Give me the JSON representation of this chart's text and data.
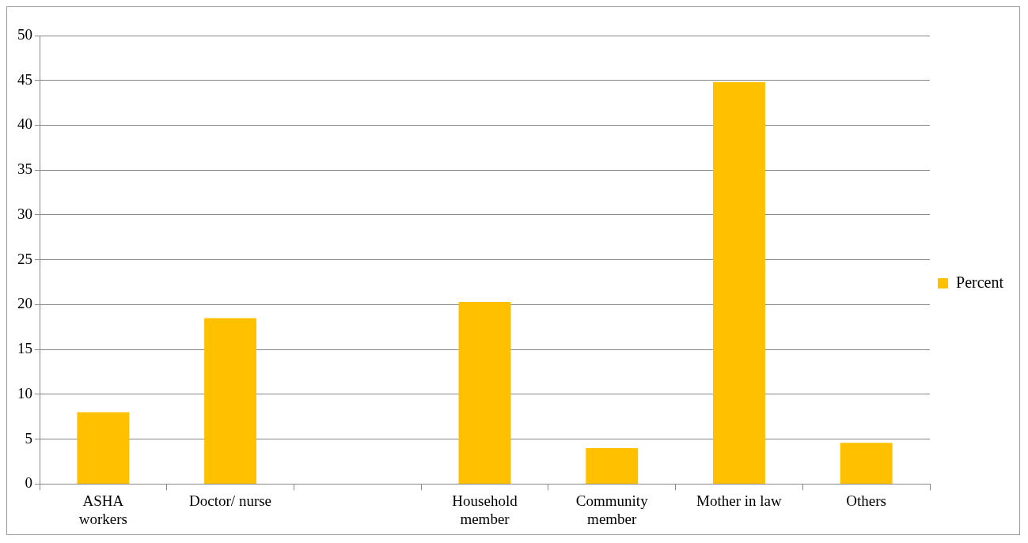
{
  "chart_data": {
    "type": "bar",
    "categories": [
      "ASHA\nworkers",
      "Doctor/ nurse",
      null,
      "Household\nmember",
      "Community\nmember",
      "Mother in law",
      "Others"
    ],
    "series": [
      {
        "name": "Percent",
        "color": "#ffc000",
        "values": [
          8.0,
          18.5,
          null,
          20.3,
          4.0,
          44.8,
          4.6
        ]
      }
    ],
    "ylim": [
      0,
      50
    ],
    "yticks": [
      0,
      5,
      10,
      15,
      20,
      25,
      30,
      35,
      40,
      45,
      50
    ],
    "grid": "y",
    "legend": "right"
  }
}
